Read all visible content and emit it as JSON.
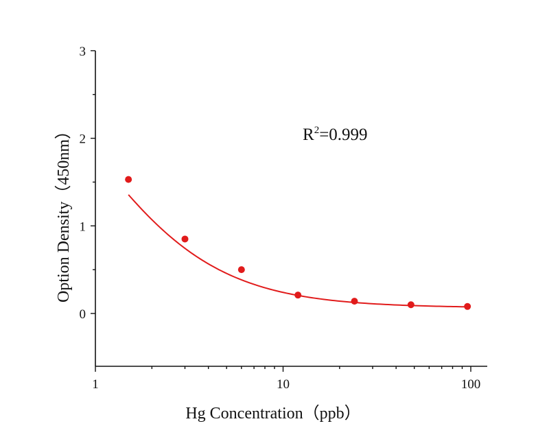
{
  "chart_data": {
    "type": "scatter",
    "title": "",
    "xlabel": "Hg Concentration（ppb）",
    "ylabel": "Option Density（450nm）",
    "xscale": "log",
    "xlim": [
      1,
      100
    ],
    "ylim": [
      -0.6,
      3
    ],
    "x_ticks": [
      1,
      10,
      100
    ],
    "x_tick_labels": [
      "1",
      "10",
      "100"
    ],
    "y_ticks": [
      0,
      1,
      2,
      3
    ],
    "y_tick_labels": [
      "0",
      "1",
      "2",
      "3"
    ],
    "grid": false,
    "legend": "none",
    "annotation": {
      "base": "R",
      "sup": "2",
      "rest": "=0.999"
    },
    "series": [
      {
        "x": [
          1.5,
          3,
          6,
          12,
          24,
          48,
          96
        ],
        "y": [
          1.53,
          0.85,
          0.5,
          0.21,
          0.14,
          0.1,
          0.08
        ],
        "color": "#e11b1b",
        "fit": "4-parameter logistic"
      }
    ]
  }
}
